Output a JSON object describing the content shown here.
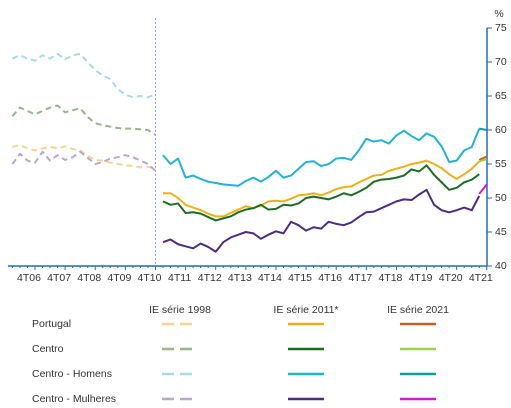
{
  "chart_data": {
    "type": "line",
    "y_unit": "%",
    "categories": [
      null,
      null,
      null,
      "4T06",
      null,
      null,
      null,
      "4T07",
      null,
      null,
      null,
      "4T08",
      null,
      null,
      null,
      "4T09",
      null,
      null,
      null,
      "4T10",
      null,
      null,
      null,
      "4T11",
      null,
      null,
      null,
      "4T12",
      null,
      null,
      null,
      "4T13",
      null,
      null,
      null,
      "4T14",
      null,
      null,
      null,
      "4T15",
      null,
      null,
      null,
      "4T16",
      null,
      null,
      null,
      "4T17",
      null,
      null,
      null,
      "4T18",
      null,
      null,
      null,
      "4T19",
      null,
      null,
      null,
      "4T20",
      null,
      null,
      null,
      "4T21"
    ],
    "ylim": [
      40,
      75
    ],
    "yticks": [
      40,
      45,
      50,
      55,
      60,
      65,
      70,
      75
    ],
    "editions": [
      "IE série 1998",
      "IE série 2011*",
      "IE série 2021"
    ],
    "line_styles": [
      "dashed",
      "solid",
      "solid"
    ],
    "groups": [
      {
        "name": "Portugal",
        "series": [
          {
            "color": "#f8d48c",
            "values": [
              57.5,
              57.8,
              57.3,
              57.0,
              57.3,
              57.5,
              57.3,
              57.6,
              57.2,
              57.0,
              56.2,
              55.6,
              55.5,
              55.2,
              55.0,
              54.8,
              54.7,
              54.5,
              54.6,
              54.3,
              null,
              null,
              null,
              null,
              null,
              null,
              null,
              null,
              null,
              null,
              null,
              null,
              null,
              null,
              null,
              null,
              null,
              null,
              null,
              null,
              null,
              null,
              null,
              null,
              null,
              null,
              null,
              null,
              null,
              null,
              null,
              null,
              null,
              null,
              null,
              null,
              null,
              null,
              null,
              null,
              null,
              null,
              null,
              null
            ]
          },
          {
            "color": "#f0b015",
            "values": [
              null,
              null,
              null,
              null,
              null,
              null,
              null,
              null,
              null,
              null,
              null,
              null,
              null,
              null,
              null,
              null,
              null,
              null,
              null,
              null,
              50.7,
              50.7,
              50.0,
              49.0,
              48.6,
              48.2,
              47.7,
              47.3,
              47.3,
              47.8,
              48.3,
              48.8,
              48.5,
              48.9,
              49.5,
              49.6,
              49.5,
              49.9,
              50.4,
              50.5,
              50.7,
              50.4,
              50.8,
              51.3,
              51.6,
              51.7,
              52.3,
              52.8,
              53.3,
              53.4,
              54.0,
              54.3,
              54.6,
              55.0,
              55.2,
              55.5,
              55.0,
              54.4,
              53.5,
              52.8,
              53.5,
              54.3,
              55.4,
              null
            ]
          },
          {
            "color": "#c8601c",
            "values": [
              null,
              null,
              null,
              null,
              null,
              null,
              null,
              null,
              null,
              null,
              null,
              null,
              null,
              null,
              null,
              null,
              null,
              null,
              null,
              null,
              null,
              null,
              null,
              null,
              null,
              null,
              null,
              null,
              null,
              null,
              null,
              null,
              null,
              null,
              null,
              null,
              null,
              null,
              null,
              null,
              null,
              null,
              null,
              null,
              null,
              null,
              null,
              null,
              null,
              null,
              null,
              null,
              null,
              null,
              null,
              null,
              null,
              null,
              null,
              null,
              null,
              null,
              55.6,
              56.1
            ]
          }
        ]
      },
      {
        "name": "Centro",
        "series": [
          {
            "color": "#93b889",
            "values": [
              62.0,
              63.3,
              62.8,
              62.3,
              62.8,
              63.3,
              63.6,
              62.6,
              62.9,
              63.2,
              61.9,
              61.0,
              60.7,
              60.5,
              60.3,
              60.2,
              60.2,
              60.1,
              60.0,
              59.3,
              null,
              null,
              null,
              null,
              null,
              null,
              null,
              null,
              null,
              null,
              null,
              null,
              null,
              null,
              null,
              null,
              null,
              null,
              null,
              null,
              null,
              null,
              null,
              null,
              null,
              null,
              null,
              null,
              null,
              null,
              null,
              null,
              null,
              null,
              null,
              null,
              null,
              null,
              null,
              null,
              null,
              null,
              null,
              null
            ]
          },
          {
            "color": "#1c6e22",
            "values": [
              null,
              null,
              null,
              null,
              null,
              null,
              null,
              null,
              null,
              null,
              null,
              null,
              null,
              null,
              null,
              null,
              null,
              null,
              null,
              null,
              49.5,
              49.0,
              49.2,
              47.8,
              47.9,
              47.7,
              47.2,
              46.7,
              47.0,
              47.3,
              47.9,
              48.3,
              48.5,
              49.0,
              48.3,
              48.4,
              49.0,
              48.9,
              49.2,
              50.0,
              50.2,
              50.0,
              49.8,
              50.2,
              50.7,
              50.4,
              50.9,
              51.5,
              52.4,
              52.7,
              52.8,
              53.0,
              53.3,
              54.2,
              53.9,
              54.8,
              53.4,
              52.3,
              51.2,
              51.5,
              52.3,
              52.7,
              53.5,
              null
            ]
          },
          {
            "color": "#9ad24e",
            "values": [
              null,
              null,
              null,
              null,
              null,
              null,
              null,
              null,
              null,
              null,
              null,
              null,
              null,
              null,
              null,
              null,
              null,
              null,
              null,
              null,
              null,
              null,
              null,
              null,
              null,
              null,
              null,
              null,
              null,
              null,
              null,
              null,
              null,
              null,
              null,
              null,
              null,
              null,
              null,
              null,
              null,
              null,
              null,
              null,
              null,
              null,
              null,
              null,
              null,
              null,
              null,
              null,
              null,
              null,
              null,
              null,
              null,
              null,
              null,
              null,
              null,
              null,
              55.4,
              55.7
            ]
          }
        ]
      },
      {
        "name": "Centro - Homens",
        "series": [
          {
            "color": "#a8dce8",
            "values": [
              70.5,
              71.0,
              70.5,
              70.2,
              71.0,
              70.5,
              71.2,
              70.4,
              71.0,
              71.2,
              70.0,
              68.8,
              68.0,
              67.5,
              66.0,
              65.2,
              64.8,
              65.0,
              64.8,
              65.3,
              null,
              null,
              null,
              null,
              null,
              null,
              null,
              null,
              null,
              null,
              null,
              null,
              null,
              null,
              null,
              null,
              null,
              null,
              null,
              null,
              null,
              null,
              null,
              null,
              null,
              null,
              null,
              null,
              null,
              null,
              null,
              null,
              null,
              null,
              null,
              null,
              null,
              null,
              null,
              null,
              null,
              null,
              null,
              null
            ]
          },
          {
            "color": "#1fb4d2",
            "values": [
              null,
              null,
              null,
              null,
              null,
              null,
              null,
              null,
              null,
              null,
              null,
              null,
              null,
              null,
              null,
              null,
              null,
              null,
              null,
              null,
              56.3,
              55.0,
              55.8,
              53.0,
              53.3,
              52.8,
              52.4,
              52.2,
              52.0,
              51.9,
              51.8,
              52.5,
              53.0,
              52.4,
              53.1,
              54.0,
              53.0,
              53.3,
              54.3,
              55.3,
              55.4,
              54.7,
              55.0,
              55.8,
              55.9,
              55.6,
              57.0,
              58.7,
              58.3,
              58.5,
              58.0,
              59.2,
              59.9,
              59.1,
              58.5,
              59.5,
              59.0,
              57.6,
              55.3,
              55.5,
              57.0,
              57.5,
              60.2,
              null
            ]
          },
          {
            "color": "#0e9aa8",
            "values": [
              null,
              null,
              null,
              null,
              null,
              null,
              null,
              null,
              null,
              null,
              null,
              null,
              null,
              null,
              null,
              null,
              null,
              null,
              null,
              null,
              null,
              null,
              null,
              null,
              null,
              null,
              null,
              null,
              null,
              null,
              null,
              null,
              null,
              null,
              null,
              null,
              null,
              null,
              null,
              null,
              null,
              null,
              null,
              null,
              null,
              null,
              null,
              null,
              null,
              null,
              null,
              null,
              null,
              null,
              null,
              null,
              null,
              null,
              null,
              null,
              null,
              null,
              60.2,
              60.0
            ]
          }
        ]
      },
      {
        "name": "Centro - Mulheres",
        "series": [
          {
            "color": "#b9a6d6",
            "values": [
              55.0,
              56.5,
              55.5,
              55.2,
              56.8,
              55.5,
              56.3,
              55.6,
              56.0,
              56.8,
              55.9,
              55.0,
              55.3,
              55.8,
              56.0,
              56.3,
              56.0,
              55.5,
              55.0,
              54.0,
              null,
              null,
              null,
              null,
              null,
              null,
              null,
              null,
              null,
              null,
              null,
              null,
              null,
              null,
              null,
              null,
              null,
              null,
              null,
              null,
              null,
              null,
              null,
              null,
              null,
              null,
              null,
              null,
              null,
              null,
              null,
              null,
              null,
              null,
              null,
              null,
              null,
              null,
              null,
              null,
              null,
              null,
              null,
              null
            ]
          },
          {
            "color": "#4b2d86",
            "values": [
              null,
              null,
              null,
              null,
              null,
              null,
              null,
              null,
              null,
              null,
              null,
              null,
              null,
              null,
              null,
              null,
              null,
              null,
              null,
              null,
              43.5,
              43.9,
              43.2,
              42.9,
              42.6,
              43.3,
              42.8,
              42.1,
              43.5,
              44.2,
              44.6,
              45.0,
              44.8,
              44.0,
              44.6,
              45.1,
              44.8,
              46.5,
              46.0,
              45.2,
              45.7,
              45.5,
              46.5,
              46.2,
              46.0,
              46.4,
              47.2,
              47.9,
              48.0,
              48.5,
              49.0,
              49.5,
              49.8,
              49.7,
              50.5,
              51.2,
              49.0,
              48.2,
              47.9,
              48.2,
              48.6,
              48.2,
              50.3,
              null
            ]
          },
          {
            "color": "#d21ad2",
            "values": [
              null,
              null,
              null,
              null,
              null,
              null,
              null,
              null,
              null,
              null,
              null,
              null,
              null,
              null,
              null,
              null,
              null,
              null,
              null,
              null,
              null,
              null,
              null,
              null,
              null,
              null,
              null,
              null,
              null,
              null,
              null,
              null,
              null,
              null,
              null,
              null,
              null,
              null,
              null,
              null,
              null,
              null,
              null,
              null,
              null,
              null,
              null,
              null,
              null,
              null,
              null,
              null,
              null,
              null,
              null,
              null,
              null,
              null,
              null,
              null,
              null,
              null,
              50.6,
              52.0
            ]
          }
        ]
      }
    ]
  }
}
